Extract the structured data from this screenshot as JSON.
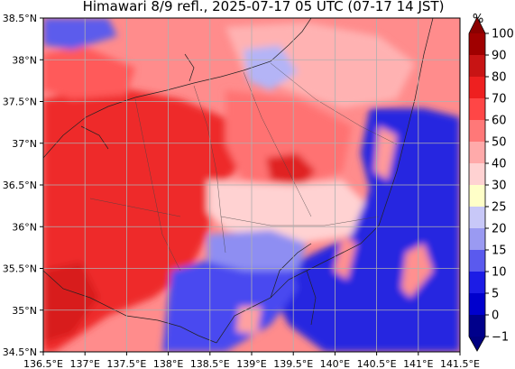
{
  "title": "Himawari 8/9 refl., 2025-07-17 05 UTC (07-17 14 JST)",
  "map": {
    "x_range": [
      136.5,
      141.5
    ],
    "y_range": [
      34.5,
      38.5
    ],
    "x_ticks": [
      {
        "value": 136.5,
        "label": "136.5°E"
      },
      {
        "value": 137.0,
        "label": "137°E"
      },
      {
        "value": 137.5,
        "label": "137.5°E"
      },
      {
        "value": 138.0,
        "label": "138°E"
      },
      {
        "value": 138.5,
        "label": "138.5°E"
      },
      {
        "value": 139.0,
        "label": "139°E"
      },
      {
        "value": 139.5,
        "label": "139.5°E"
      },
      {
        "value": 140.0,
        "label": "140°E"
      },
      {
        "value": 140.5,
        "label": "140.5°E"
      },
      {
        "value": 141.0,
        "label": "141°E"
      },
      {
        "value": 141.5,
        "label": "141.5°E"
      }
    ],
    "y_ticks": [
      {
        "value": 34.5,
        "label": "34.5°N"
      },
      {
        "value": 35.0,
        "label": "35°N"
      },
      {
        "value": 35.5,
        "label": "35.5°N"
      },
      {
        "value": 36.0,
        "label": "36°N"
      },
      {
        "value": 36.5,
        "label": "36.5°N"
      },
      {
        "value": 37.0,
        "label": "37°N"
      },
      {
        "value": 37.5,
        "label": "37.5°N"
      },
      {
        "value": 38.0,
        "label": "38°N"
      },
      {
        "value": 38.5,
        "label": "38.5°N"
      }
    ],
    "gridlines": true
  },
  "colorbar": {
    "unit": "%",
    "levels": [
      {
        "value": -1,
        "label": "−1"
      },
      {
        "value": 0,
        "label": "0"
      },
      {
        "value": 5,
        "label": "5"
      },
      {
        "value": 10,
        "label": "10"
      },
      {
        "value": 15,
        "label": "15"
      },
      {
        "value": 20,
        "label": "20"
      },
      {
        "value": 25,
        "label": "25"
      },
      {
        "value": 30,
        "label": "30"
      },
      {
        "value": 40,
        "label": "40"
      },
      {
        "value": 50,
        "label": "50"
      },
      {
        "value": 60,
        "label": "60"
      },
      {
        "value": 70,
        "label": "70"
      },
      {
        "value": 80,
        "label": "80"
      },
      {
        "value": 90,
        "label": "90"
      },
      {
        "value": 100,
        "label": "100"
      }
    ],
    "colors": [
      "#00008b",
      "#0000cd",
      "#1c1ce6",
      "#5a5aee",
      "#9a9af2",
      "#c8c8f8",
      "#ffffc8",
      "#ffd2d2",
      "#ffaaaa",
      "#ff7878",
      "#ff4646",
      "#ee2020",
      "#c81414",
      "#a00000"
    ],
    "extend_under_color": "#000080",
    "extend_over_color": "#8b0000"
  }
}
